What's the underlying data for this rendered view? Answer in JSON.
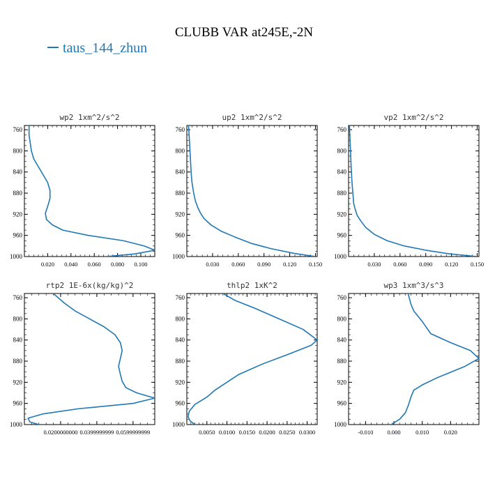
{
  "title": "CLUBB VAR at245E,-2N",
  "legend": {
    "label": "taus_144_zhun",
    "color": "#1f77b4"
  },
  "chart_data": [
    {
      "type": "line",
      "title": "wp2   1xm^2/s^2",
      "y_ticks": [
        760,
        800,
        840,
        880,
        920,
        960,
        1000
      ],
      "ylim": [
        1000,
        752
      ],
      "xlim": [
        0.0,
        0.112
      ],
      "x_ticks": [
        0.02,
        0.04,
        0.06,
        0.08,
        0.1
      ],
      "x_tick_labels": [
        "0.020",
        "0.040",
        "0.060",
        "0.080",
        "0.100"
      ],
      "series": [
        {
          "x": [
            0.004,
            0.004,
            0.005,
            0.006,
            0.008,
            0.012,
            0.016,
            0.02,
            0.022,
            0.022,
            0.02,
            0.018,
            0.019,
            0.024,
            0.033,
            0.055,
            0.085,
            0.103,
            0.112,
            0.095,
            0.07
          ],
          "y": [
            752,
            770,
            785,
            800,
            815,
            830,
            845,
            860,
            875,
            890,
            905,
            918,
            930,
            940,
            950,
            960,
            970,
            980,
            988,
            995,
            1000
          ]
        }
      ],
      "grid": false
    },
    {
      "type": "line",
      "title": "up2   1xm^2/s^2",
      "y_ticks": [
        760,
        800,
        840,
        880,
        920,
        960,
        1000
      ],
      "ylim": [
        1000,
        752
      ],
      "xlim": [
        0.0,
        0.152
      ],
      "x_ticks": [
        0.03,
        0.06,
        0.09,
        0.12,
        0.15
      ],
      "x_tick_labels": [
        "0.030",
        "0.060",
        "0.090",
        "0.120",
        "0.150"
      ],
      "series": [
        {
          "x": [
            0.002,
            0.003,
            0.004,
            0.005,
            0.006,
            0.008,
            0.01,
            0.013,
            0.016,
            0.02,
            0.028,
            0.04,
            0.056,
            0.075,
            0.098,
            0.125,
            0.15
          ],
          "y": [
            752,
            780,
            810,
            840,
            860,
            880,
            895,
            908,
            918,
            928,
            940,
            952,
            963,
            975,
            985,
            994,
            1000
          ]
        }
      ],
      "grid": false
    },
    {
      "type": "line",
      "title": "vp2   1xm^2/s^2",
      "y_ticks": [
        760,
        800,
        840,
        880,
        920,
        960,
        1000
      ],
      "ylim": [
        1000,
        752
      ],
      "xlim": [
        0.0,
        0.152
      ],
      "x_ticks": [
        0.03,
        0.06,
        0.09,
        0.12,
        0.15
      ],
      "x_tick_labels": [
        "0.030",
        "0.060",
        "0.090",
        "0.120",
        "0.150"
      ],
      "series": [
        {
          "x": [
            0.001,
            0.002,
            0.003,
            0.004,
            0.005,
            0.006,
            0.008,
            0.01,
            0.014,
            0.02,
            0.03,
            0.045,
            0.065,
            0.09,
            0.118,
            0.15
          ],
          "y": [
            752,
            790,
            830,
            860,
            880,
            900,
            912,
            922,
            932,
            945,
            958,
            970,
            980,
            988,
            995,
            1000
          ]
        }
      ],
      "grid": false
    },
    {
      "type": "line",
      "title": "rtp2   1E-6x(kg/kg)^2",
      "y_ticks": [
        760,
        800,
        840,
        880,
        920,
        960,
        1000
      ],
      "ylim": [
        1000,
        752
      ],
      "xlim": [
        0.0,
        0.072
      ],
      "x_ticks": [
        0.02,
        0.04,
        0.06
      ],
      "x_tick_labels": [
        "0.0200000000",
        "0.0399999999",
        "0.0599999999"
      ],
      "series": [
        {
          "x": [
            0.016,
            0.022,
            0.028,
            0.036,
            0.044,
            0.05,
            0.053,
            0.054,
            0.053,
            0.052,
            0.053,
            0.054,
            0.056,
            0.062,
            0.072,
            0.06,
            0.03,
            0.01,
            0.002,
            0.003,
            0.008
          ],
          "y": [
            752,
            770,
            785,
            800,
            815,
            830,
            845,
            860,
            875,
            890,
            905,
            918,
            930,
            940,
            950,
            960,
            970,
            980,
            988,
            995,
            1000
          ]
        }
      ],
      "grid": false
    },
    {
      "type": "line",
      "title": "thlp2   1xK^2",
      "y_ticks": [
        760,
        800,
        840,
        880,
        920,
        960,
        1000
      ],
      "ylim": [
        1000,
        752
      ],
      "xlim": [
        0.0,
        0.0325
      ],
      "x_ticks": [
        0.005,
        0.01,
        0.015,
        0.02,
        0.025,
        0.03
      ],
      "x_tick_labels": [
        "0.0050",
        "0.0100",
        "0.0150",
        "0.0200",
        "0.0250",
        "0.0300"
      ],
      "series": [
        {
          "x": [
            0.009,
            0.012,
            0.017,
            0.023,
            0.029,
            0.0325,
            0.031,
            0.026,
            0.019,
            0.013,
            0.01,
            0.007,
            0.005,
            0.002,
            0.0006,
            0.0003,
            0.0008,
            0.002
          ],
          "y": [
            752,
            765,
            780,
            800,
            820,
            840,
            850,
            865,
            885,
            905,
            920,
            935,
            948,
            962,
            975,
            985,
            993,
            1000
          ]
        }
      ],
      "grid": false
    },
    {
      "type": "line",
      "title": "wp3   1xm^3/s^3",
      "y_ticks": [
        760,
        800,
        840,
        880,
        920,
        960,
        1000
      ],
      "ylim": [
        1000,
        752
      ],
      "xlim": [
        -0.016,
        0.03
      ],
      "x_ticks": [
        -0.01,
        0.0,
        0.01,
        0.02
      ],
      "x_tick_labels": [
        "-0.010",
        "0.000",
        "0.010",
        "0.020"
      ],
      "series": [
        {
          "x": [
            0.005,
            0.006,
            0.007,
            0.01,
            0.013,
            0.02,
            0.027,
            0.03,
            0.025,
            0.015,
            0.01,
            0.007,
            0.006,
            0.005,
            0.004,
            0.002,
            -0.001
          ],
          "y": [
            752,
            772,
            785,
            805,
            828,
            845,
            860,
            875,
            890,
            912,
            925,
            935,
            948,
            965,
            978,
            990,
            1000
          ]
        }
      ],
      "grid": false
    }
  ]
}
